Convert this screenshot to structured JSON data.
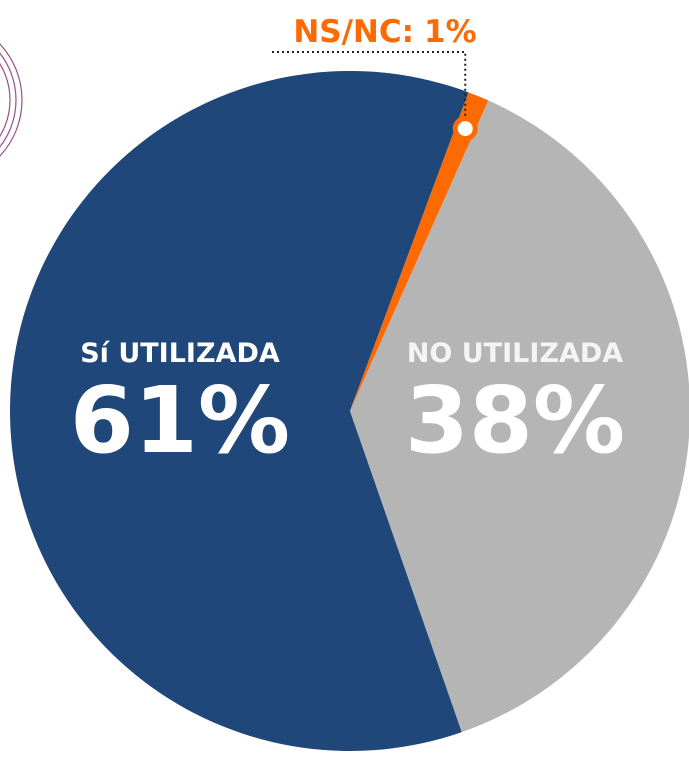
{
  "chart_data": {
    "type": "pie",
    "categories": [
      "Sí UTILIZADA",
      "NO UTILIZADA",
      "NS/NC:"
    ],
    "values": [
      61,
      38,
      1
    ],
    "value_labels": [
      "61%",
      "38%",
      "1%"
    ],
    "colors": [
      "#1f477a",
      "#b5b5b5",
      "#ff6a00"
    ],
    "start_angle": 20.4,
    "direction": "counterclockwise"
  }
}
